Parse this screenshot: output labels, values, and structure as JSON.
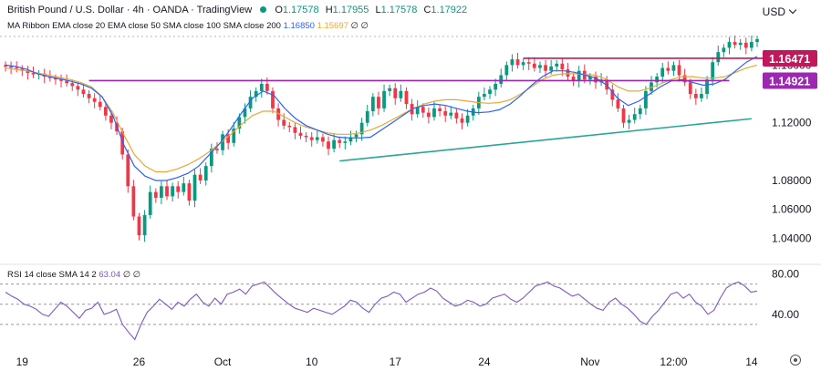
{
  "header": {
    "symbol": "British Pound / U.S. Dollar · 4h · OANDA · TradingView",
    "ohlc": [
      {
        "k": "O",
        "v": "1.17578"
      },
      {
        "k": "H",
        "v": "1.17955"
      },
      {
        "k": "L",
        "v": "1.17578"
      },
      {
        "k": "C",
        "v": "1.17922"
      }
    ],
    "ribbon_label": "MA Ribbon EMA close 20 EMA close 50 SMA close 100 SMA close 200",
    "ribbon_v1": "1.16850",
    "ribbon_v2": "1.15697",
    "ribbon_tail": "∅ ∅",
    "rsi_label": "RSI 14 close SMA 14 2",
    "rsi_value": "63.04",
    "rsi_tail": "∅ ∅"
  },
  "currency": "USD",
  "icons": {
    "currency_menu": "chevron-down-icon",
    "settings": "gear-icon"
  },
  "colors": {
    "up": "#089981",
    "down": "#f23645",
    "ema20": "#2962ff",
    "ema50": "#e8a838",
    "resistance": "#9c27b0",
    "support_upper": "#c2185b",
    "trendline": "#26a69a",
    "rsi": "#7e57c2"
  },
  "chart_data": {
    "type": "candlestick",
    "price_axis": {
      "ticks": [
        "1.16000",
        "1.12000",
        "1.08000",
        "1.06000",
        "1.04000"
      ],
      "ymin": 1.025,
      "ymax": 1.183
    },
    "price_badges": [
      {
        "label": "1.16471",
        "value": 1.16471,
        "color": "#c2185b"
      },
      {
        "label": "1.14921",
        "value": 1.14921,
        "color": "#9c27b0"
      }
    ],
    "lines": [
      {
        "from": 15,
        "to": 130,
        "y1": 1.14921,
        "y2": 1.14921,
        "color": "#9c27b0"
      },
      {
        "from": 93,
        "to": 138,
        "y1": 1.16471,
        "y2": 1.16471,
        "color": "#c2185b"
      },
      {
        "from": 60,
        "to": 134,
        "y1": 1.0935,
        "y2": 1.1228,
        "color": "#26a69a"
      }
    ],
    "x_labels": [
      {
        "label": "19",
        "i": 3
      },
      {
        "label": "26",
        "i": 24
      },
      {
        "label": "Oct",
        "i": 39
      },
      {
        "label": "10",
        "i": 55
      },
      {
        "label": "17",
        "i": 70
      },
      {
        "label": "24",
        "i": 86
      },
      {
        "label": "Nov",
        "i": 105
      },
      {
        "label": "12:00",
        "i": 120
      },
      {
        "label": "14",
        "i": 134
      }
    ],
    "closes": [
      1.159,
      1.1582,
      1.1575,
      1.156,
      1.1545,
      1.1535,
      1.154,
      1.152,
      1.151,
      1.15,
      1.149,
      1.1475,
      1.1455,
      1.143,
      1.14,
      1.137,
      1.1345,
      1.131,
      1.125,
      1.12,
      1.114,
      1.098,
      1.076,
      1.055,
      1.042,
      1.056,
      1.072,
      1.068,
      1.076,
      1.069,
      1.076,
      1.072,
      1.078,
      1.066,
      1.084,
      1.08,
      1.09,
      1.102,
      1.101,
      1.112,
      1.106,
      1.116,
      1.124,
      1.13,
      1.138,
      1.142,
      1.147,
      1.142,
      1.13,
      1.122,
      1.118,
      1.117,
      1.113,
      1.111,
      1.11,
      1.108,
      1.11,
      1.107,
      1.102,
      1.108,
      1.106,
      1.107,
      1.11,
      1.112,
      1.12,
      1.128,
      1.138,
      1.13,
      1.142,
      1.144,
      1.137,
      1.142,
      1.133,
      1.126,
      1.131,
      1.127,
      1.124,
      1.13,
      1.128,
      1.125,
      1.127,
      1.123,
      1.12,
      1.125,
      1.13,
      1.138,
      1.14,
      1.143,
      1.147,
      1.153,
      1.16,
      1.164,
      1.16,
      1.162,
      1.161,
      1.158,
      1.16,
      1.156,
      1.159,
      1.161,
      1.157,
      1.152,
      1.149,
      1.156,
      1.15,
      1.152,
      1.148,
      1.15,
      1.143,
      1.136,
      1.13,
      1.12,
      1.122,
      1.126,
      1.13,
      1.142,
      1.148,
      1.152,
      1.158,
      1.156,
      1.16,
      1.153,
      1.148,
      1.14,
      1.137,
      1.14,
      1.15,
      1.162,
      1.169,
      1.172,
      1.176,
      1.174,
      1.1755,
      1.172,
      1.176,
      1.178
    ],
    "ema20": [
      1.16,
      1.159,
      1.157,
      1.154,
      1.152,
      1.1505,
      1.149,
      1.147,
      1.144,
      1.138,
      1.125,
      1.105,
      1.09,
      1.083,
      1.08,
      1.08,
      1.082,
      1.085,
      1.09,
      1.098,
      1.106,
      1.116,
      1.127,
      1.137,
      1.142,
      1.139,
      1.13,
      1.123,
      1.118,
      1.115,
      1.112,
      1.11,
      1.1095,
      1.1095,
      1.11,
      1.115,
      1.12,
      1.125,
      1.13,
      1.132,
      1.133,
      1.132,
      1.13,
      1.128,
      1.127,
      1.1275,
      1.129,
      1.133,
      1.139,
      1.146,
      1.152,
      1.156,
      1.156,
      1.155,
      1.153,
      1.151,
      1.146,
      1.137,
      1.132,
      1.135,
      1.14,
      1.145,
      1.149,
      1.15,
      1.148,
      1.146,
      1.147,
      1.15,
      1.156,
      1.162,
      1.166
    ],
    "ema50": [
      1.158,
      1.157,
      1.156,
      1.1545,
      1.153,
      1.1515,
      1.15,
      1.148,
      1.145,
      1.138,
      1.127,
      1.112,
      1.098,
      1.09,
      1.086,
      1.086,
      1.088,
      1.091,
      1.095,
      1.1,
      1.106,
      1.112,
      1.119,
      1.125,
      1.128,
      1.128,
      1.124,
      1.12,
      1.117,
      1.115,
      1.113,
      1.112,
      1.112,
      1.113,
      1.115,
      1.118,
      1.122,
      1.126,
      1.13,
      1.133,
      1.135,
      1.136,
      1.136,
      1.135,
      1.134,
      1.1335,
      1.134,
      1.136,
      1.14,
      1.145,
      1.15,
      1.153,
      1.154,
      1.154,
      1.1535,
      1.153,
      1.15,
      1.145,
      1.142,
      1.142,
      1.144,
      1.147,
      1.15,
      1.152,
      1.152,
      1.151,
      1.151,
      1.152,
      1.155,
      1.158,
      1.16
    ],
    "rsi_axis": {
      "ticks": [
        "80.00",
        "40.00"
      ],
      "ymin": 10,
      "ymax": 85,
      "dashed": [
        70,
        50,
        30
      ]
    },
    "rsi": [
      62,
      58,
      55,
      50,
      48,
      45,
      40,
      38,
      45,
      52,
      48,
      42,
      36,
      44,
      46,
      52,
      40,
      42,
      45,
      30,
      22,
      15,
      30,
      42,
      48,
      55,
      50,
      45,
      52,
      48,
      55,
      60,
      52,
      48,
      56,
      50,
      60,
      62,
      65,
      60,
      68,
      70,
      72,
      66,
      60,
      55,
      50,
      46,
      44,
      42,
      46,
      44,
      42,
      40,
      44,
      48,
      54,
      52,
      46,
      42,
      50,
      56,
      58,
      62,
      60,
      52,
      56,
      60,
      62,
      66,
      63,
      56,
      52,
      48,
      50,
      54,
      52,
      48,
      50,
      56,
      58,
      60,
      55,
      52,
      56,
      62,
      68,
      70,
      72,
      68,
      66,
      62,
      58,
      60,
      55,
      50,
      46,
      44,
      52,
      56,
      50,
      46,
      40,
      33,
      30,
      38,
      44,
      52,
      60,
      62,
      56,
      60,
      52,
      48,
      40,
      44,
      56,
      66,
      70,
      72,
      68,
      62,
      63
    ]
  }
}
